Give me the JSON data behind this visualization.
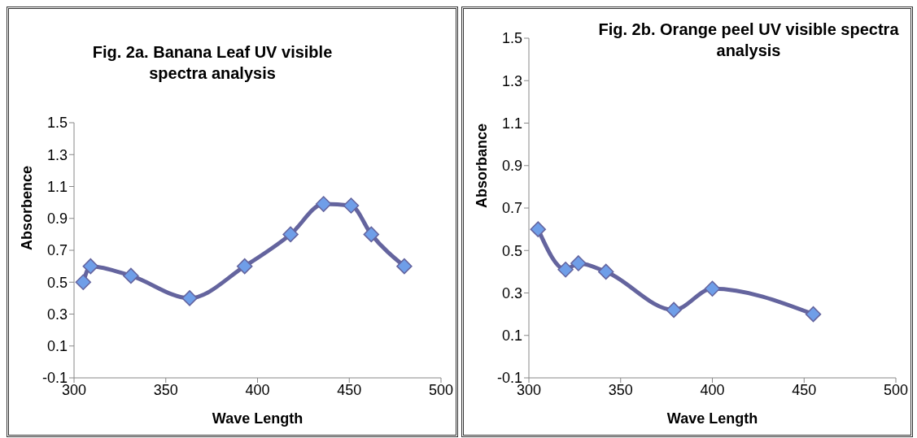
{
  "chart_data": [
    {
      "type": "line",
      "title": "Fig. 2a. Banana Leaf  UV visible spectra analysis",
      "xlabel": "Wave Length",
      "ylabel": "Absorbence",
      "xlim": [
        300,
        500
      ],
      "xticks": [
        300,
        350,
        400,
        450,
        500
      ],
      "ylim": [
        -0.1,
        1.5
      ],
      "yticks": [
        -0.1,
        0.1,
        0.3,
        0.5,
        0.7,
        0.9,
        1.1,
        1.3,
        1.5
      ],
      "marker": "diamond",
      "series": [
        {
          "color": "#64649e",
          "x": [
            305,
            309,
            331,
            363,
            393,
            418,
            436,
            451,
            462,
            480
          ],
          "values": [
            0.5,
            0.6,
            0.54,
            0.4,
            0.6,
            0.8,
            0.99,
            0.98,
            0.8,
            0.6
          ]
        }
      ]
    },
    {
      "type": "line",
      "title": "Fig. 2b. Orange peel UV visible spectra analysis",
      "xlabel": "Wave Length",
      "ylabel": "Absorbance",
      "xlim": [
        300,
        500
      ],
      "xticks": [
        300,
        350,
        400,
        450,
        500
      ],
      "ylim": [
        -0.1,
        1.5
      ],
      "yticks": [
        -0.1,
        0.1,
        0.3,
        0.5,
        0.7,
        0.9,
        1.1,
        1.3,
        1.5
      ],
      "marker": "diamond",
      "series": [
        {
          "color": "#64649e",
          "x": [
            305,
            320,
            327,
            342,
            379,
            400,
            455
          ],
          "values": [
            0.6,
            0.41,
            0.44,
            0.4,
            0.22,
            0.32,
            0.2
          ]
        }
      ]
    }
  ]
}
